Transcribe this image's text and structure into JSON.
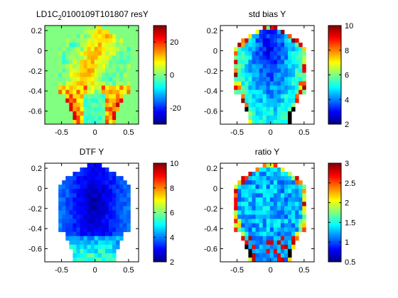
{
  "figure": {
    "background": "#ffffff",
    "axis_color": "#000000"
  },
  "chart_data": [
    {
      "type": "heatmap",
      "title": "LD1C",
      "title_sub": "2",
      "title_rest": "0100109T101807 resY",
      "xlim": [
        -0.75,
        0.65
      ],
      "ylim": [
        -0.73,
        0.25
      ],
      "xticks": [
        -0.5,
        0,
        0.5
      ],
      "xtick_labels": [
        "-0.5",
        "0",
        "0.5"
      ],
      "yticks": [
        0.2,
        0,
        -0.2,
        -0.4,
        -0.6
      ],
      "ytick_labels": [
        "0.2",
        "0",
        "-0.2",
        "-0.4",
        "-0.6"
      ],
      "colorbar": {
        "clim": [
          -30,
          30
        ],
        "ticks": [
          20,
          0,
          -20
        ],
        "tick_labels": [
          "20",
          "0",
          "-20"
        ]
      },
      "field": "resid"
    },
    {
      "type": "heatmap",
      "title": "std bias Y",
      "xlim": [
        -0.75,
        0.65
      ],
      "ylim": [
        -0.73,
        0.25
      ],
      "xticks": [
        -0.5,
        0,
        0.5
      ],
      "xtick_labels": [
        "-0.5",
        "0",
        "0.5"
      ],
      "yticks": [
        0.2,
        0,
        -0.2,
        -0.4,
        -0.6
      ],
      "ytick_labels": [
        "0.2",
        "0",
        "-0.2",
        "-0.4",
        "-0.6"
      ],
      "colorbar": {
        "clim": [
          2,
          10
        ],
        "ticks": [
          10,
          8,
          6,
          4,
          2
        ],
        "tick_labels": [
          "10",
          "8",
          "6",
          "4",
          "2"
        ]
      },
      "field": "stdbias"
    },
    {
      "type": "heatmap",
      "title": "DTF Y",
      "xlim": [
        -0.75,
        0.65
      ],
      "ylim": [
        -0.73,
        0.25
      ],
      "xticks": [
        -0.5,
        0,
        0.5
      ],
      "xtick_labels": [
        "-0.5",
        "0",
        "0.5"
      ],
      "yticks": [
        0.2,
        0,
        -0.2,
        -0.4,
        -0.6
      ],
      "ytick_labels": [
        "0.2",
        "0",
        "-0.2",
        "-0.4",
        "-0.6"
      ],
      "colorbar": {
        "clim": [
          2,
          10
        ],
        "ticks": [
          10,
          8,
          6,
          4,
          2
        ],
        "tick_labels": [
          "10",
          "8",
          "6",
          "4",
          "2"
        ]
      },
      "field": "dtf"
    },
    {
      "type": "heatmap",
      "title": "ratio Y",
      "xlim": [
        -0.75,
        0.65
      ],
      "ylim": [
        -0.73,
        0.25
      ],
      "xticks": [
        -0.5,
        0,
        0.5
      ],
      "xtick_labels": [
        "-0.5",
        "0",
        "0.5"
      ],
      "yticks": [
        0.2,
        0,
        -0.2,
        -0.4,
        -0.6
      ],
      "ytick_labels": [
        "0.2",
        "0",
        "-0.2",
        "-0.4",
        "-0.6"
      ],
      "colorbar": {
        "clim": [
          0.5,
          3
        ],
        "ticks": [
          3,
          2.5,
          2,
          1.5,
          1,
          0.5
        ],
        "tick_labels": [
          "3",
          "2.5",
          "2",
          "1.5",
          "1",
          "0.5"
        ]
      },
      "field": "ratio"
    }
  ]
}
